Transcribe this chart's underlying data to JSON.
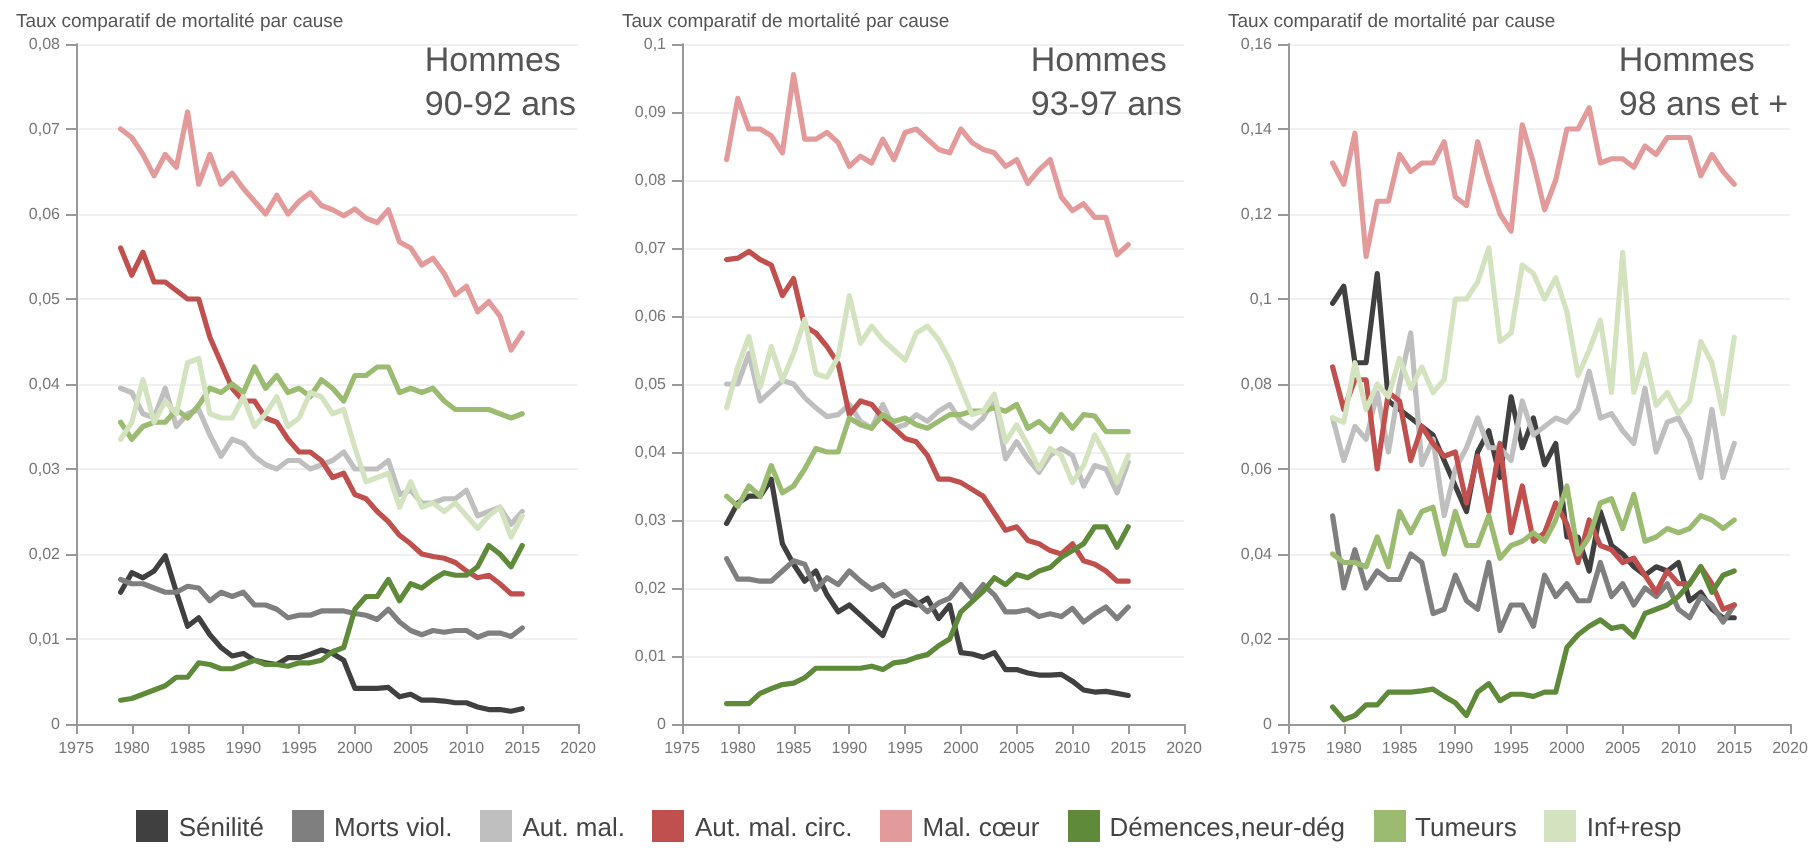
{
  "chart_data": [
    {
      "type": "line",
      "title": "Hommes\n90-92 ans",
      "ylabel": "Taux comparatif de mortalité par cause",
      "xlim": [
        1975,
        2020
      ],
      "xticks": [
        1975,
        1980,
        1985,
        1990,
        1995,
        2000,
        2005,
        2010,
        2015,
        2020
      ],
      "ylim": [
        0,
        0.08
      ],
      "yticks": [
        {
          "value": 0,
          "label": "0"
        },
        {
          "value": 0.01,
          "label": "0,01"
        },
        {
          "value": 0.02,
          "label": "0,02"
        },
        {
          "value": 0.03,
          "label": "0,03"
        },
        {
          "value": 0.04,
          "label": "0,04"
        },
        {
          "value": 0.05,
          "label": "0,05"
        },
        {
          "value": 0.06,
          "label": "0,06"
        },
        {
          "value": 0.07,
          "label": "0,07"
        },
        {
          "value": 0.08,
          "label": "0,08"
        }
      ],
      "grid": "y",
      "legend": "bottom",
      "marker": "none",
      "line_style": "solid",
      "x": [
        1979,
        1980,
        1981,
        1982,
        1983,
        1984,
        1985,
        1986,
        1987,
        1988,
        1989,
        1990,
        1991,
        1992,
        1993,
        1994,
        1995,
        1996,
        1997,
        1998,
        1999,
        2000,
        2001,
        2002,
        2003,
        2004,
        2005,
        2006,
        2007,
        2008,
        2009,
        2010,
        2011,
        2012,
        2013,
        2014,
        2015
      ],
      "series": [
        {
          "name": "Sénilité",
          "color": "#404040",
          "values": [
            0.0155,
            0.0178,
            0.0172,
            0.018,
            0.0198,
            0.0155,
            0.0115,
            0.0125,
            0.0105,
            0.009,
            0.008,
            0.0083,
            0.0075,
            0.0072,
            0.007,
            0.0078,
            0.0078,
            0.0082,
            0.0087,
            0.0083,
            0.0075,
            0.0042,
            0.0042,
            0.0042,
            0.0043,
            0.0032,
            0.0035,
            0.0028,
            0.0028,
            0.0027,
            0.0025,
            0.0025,
            0.002,
            0.0017,
            0.0017,
            0.0015,
            0.0018
          ]
        },
        {
          "name": "Morts viol.",
          "color": "#7f7f7f",
          "values": [
            0.017,
            0.0165,
            0.0165,
            0.016,
            0.0155,
            0.0155,
            0.0162,
            0.016,
            0.0145,
            0.0155,
            0.015,
            0.0155,
            0.014,
            0.014,
            0.0135,
            0.0125,
            0.0128,
            0.0128,
            0.0133,
            0.0133,
            0.0133,
            0.013,
            0.0128,
            0.0123,
            0.0135,
            0.012,
            0.011,
            0.0105,
            0.011,
            0.0108,
            0.011,
            0.011,
            0.0102,
            0.0107,
            0.0107,
            0.0103,
            0.0113
          ]
        },
        {
          "name": "Aut. mal.",
          "color": "#bfbfbf",
          "values": [
            0.0395,
            0.039,
            0.0365,
            0.036,
            0.0395,
            0.035,
            0.0365,
            0.037,
            0.034,
            0.0315,
            0.0335,
            0.033,
            0.0315,
            0.0305,
            0.03,
            0.031,
            0.031,
            0.03,
            0.0305,
            0.031,
            0.032,
            0.03,
            0.03,
            0.03,
            0.031,
            0.027,
            0.0275,
            0.026,
            0.026,
            0.0265,
            0.0265,
            0.0275,
            0.0245,
            0.025,
            0.0255,
            0.0235,
            0.025
          ]
        },
        {
          "name": "Aut. mal. circ.",
          "color": "#c0504d",
          "values": [
            0.056,
            0.0528,
            0.0555,
            0.052,
            0.052,
            0.051,
            0.05,
            0.05,
            0.0455,
            0.0425,
            0.0395,
            0.038,
            0.038,
            0.036,
            0.0355,
            0.0335,
            0.032,
            0.032,
            0.031,
            0.029,
            0.0295,
            0.027,
            0.0265,
            0.025,
            0.0238,
            0.0222,
            0.0212,
            0.02,
            0.0197,
            0.0195,
            0.019,
            0.018,
            0.0172,
            0.0175,
            0.0165,
            0.0153,
            0.0153
          ]
        },
        {
          "name": "Mal. cœur",
          "color": "#e29a9a",
          "values": [
            0.07,
            0.069,
            0.067,
            0.0645,
            0.067,
            0.0655,
            0.072,
            0.0635,
            0.067,
            0.0635,
            0.0648,
            0.063,
            0.0615,
            0.06,
            0.0622,
            0.06,
            0.0615,
            0.0625,
            0.061,
            0.0605,
            0.0598,
            0.0606,
            0.0595,
            0.059,
            0.0605,
            0.0567,
            0.056,
            0.054,
            0.0548,
            0.053,
            0.0505,
            0.0515,
            0.0485,
            0.0497,
            0.048,
            0.044,
            0.046
          ]
        },
        {
          "name": "Démences,neur-dég",
          "color": "#5e8a3a",
          "values": [
            0.0028,
            0.003,
            0.0035,
            0.004,
            0.0045,
            0.0055,
            0.0055,
            0.0072,
            0.007,
            0.0065,
            0.0065,
            0.007,
            0.0075,
            0.007,
            0.007,
            0.0068,
            0.0072,
            0.0072,
            0.0075,
            0.0085,
            0.009,
            0.0135,
            0.015,
            0.015,
            0.017,
            0.0145,
            0.0165,
            0.016,
            0.017,
            0.0178,
            0.0175,
            0.0175,
            0.0185,
            0.021,
            0.02,
            0.0185,
            0.021
          ]
        },
        {
          "name": "Tumeurs",
          "color": "#9bbb70",
          "values": [
            0.0355,
            0.0335,
            0.035,
            0.0355,
            0.0355,
            0.037,
            0.036,
            0.0375,
            0.0395,
            0.039,
            0.04,
            0.039,
            0.042,
            0.0395,
            0.041,
            0.039,
            0.0395,
            0.0385,
            0.0405,
            0.0395,
            0.038,
            0.041,
            0.041,
            0.042,
            0.042,
            0.039,
            0.0395,
            0.039,
            0.0395,
            0.038,
            0.037,
            0.037,
            0.037,
            0.037,
            0.0365,
            0.036,
            0.0365
          ]
        },
        {
          "name": "Inf+resp",
          "color": "#d4e3bf",
          "values": [
            0.0335,
            0.0355,
            0.0405,
            0.0355,
            0.038,
            0.0365,
            0.0425,
            0.043,
            0.0365,
            0.036,
            0.036,
            0.0385,
            0.035,
            0.0365,
            0.0385,
            0.035,
            0.036,
            0.039,
            0.0385,
            0.0365,
            0.037,
            0.0325,
            0.0285,
            0.029,
            0.0295,
            0.0255,
            0.0285,
            0.0255,
            0.026,
            0.025,
            0.026,
            0.0245,
            0.023,
            0.0245,
            0.0255,
            0.022,
            0.0245
          ]
        }
      ]
    },
    {
      "type": "line",
      "title": "Hommes\n93-97 ans",
      "ylabel": "Taux comparatif de mortalité par cause",
      "xlim": [
        1975,
        2020
      ],
      "xticks": [
        1975,
        1980,
        1985,
        1990,
        1995,
        2000,
        2005,
        2010,
        2015,
        2020
      ],
      "ylim": [
        0,
        0.1
      ],
      "yticks": [
        {
          "value": 0,
          "label": "0"
        },
        {
          "value": 0.01,
          "label": "0,01"
        },
        {
          "value": 0.02,
          "label": "0,02"
        },
        {
          "value": 0.03,
          "label": "0,03"
        },
        {
          "value": 0.04,
          "label": "0,04"
        },
        {
          "value": 0.05,
          "label": "0,05"
        },
        {
          "value": 0.06,
          "label": "0,06"
        },
        {
          "value": 0.07,
          "label": "0,07"
        },
        {
          "value": 0.08,
          "label": "0,08"
        },
        {
          "value": 0.09,
          "label": "0,09"
        },
        {
          "value": 0.1,
          "label": "0,1"
        }
      ],
      "grid": "y",
      "marker": "none",
      "line_style": "solid",
      "x": [
        1979,
        1980,
        1981,
        1982,
        1983,
        1984,
        1985,
        1986,
        1987,
        1988,
        1989,
        1990,
        1991,
        1992,
        1993,
        1994,
        1995,
        1996,
        1997,
        1998,
        1999,
        2000,
        2001,
        2002,
        2003,
        2004,
        2005,
        2006,
        2007,
        2008,
        2009,
        2010,
        2011,
        2012,
        2013,
        2014,
        2015
      ],
      "series": [
        {
          "color": "#404040",
          "values": [
            0.0295,
            0.0325,
            0.0335,
            0.0335,
            0.036,
            0.0265,
            0.0235,
            0.021,
            0.0225,
            0.019,
            0.0165,
            0.0175,
            0.016,
            0.0145,
            0.013,
            0.017,
            0.018,
            0.0175,
            0.0185,
            0.0155,
            0.0175,
            0.0105,
            0.0103,
            0.0098,
            0.0105,
            0.008,
            0.008,
            0.0075,
            0.0072,
            0.0072,
            0.0073,
            0.0063,
            0.005,
            0.0047,
            0.0048,
            0.0045,
            0.0042
          ]
        },
        {
          "color": "#7f7f7f",
          "values": [
            0.0243,
            0.0213,
            0.0213,
            0.021,
            0.021,
            0.0225,
            0.024,
            0.0235,
            0.0198,
            0.0215,
            0.0205,
            0.0225,
            0.021,
            0.0198,
            0.0205,
            0.0188,
            0.0195,
            0.018,
            0.0165,
            0.0178,
            0.0185,
            0.0205,
            0.0185,
            0.0205,
            0.019,
            0.0165,
            0.0165,
            0.0168,
            0.0158,
            0.0162,
            0.0158,
            0.017,
            0.015,
            0.0162,
            0.0172,
            0.0155,
            0.0172
          ]
        },
        {
          "color": "#bfbfbf",
          "values": [
            0.05,
            0.05,
            0.0545,
            0.0475,
            0.049,
            0.0505,
            0.05,
            0.048,
            0.0465,
            0.0452,
            0.0455,
            0.047,
            0.0445,
            0.0435,
            0.047,
            0.0435,
            0.044,
            0.0455,
            0.0445,
            0.046,
            0.047,
            0.0445,
            0.0435,
            0.045,
            0.048,
            0.039,
            0.0415,
            0.039,
            0.037,
            0.0395,
            0.0405,
            0.0395,
            0.035,
            0.038,
            0.0375,
            0.034,
            0.0385
          ]
        },
        {
          "color": "#c0504d",
          "values": [
            0.0683,
            0.0685,
            0.0695,
            0.0683,
            0.0675,
            0.063,
            0.0655,
            0.0585,
            0.0575,
            0.0555,
            0.053,
            0.0455,
            0.0475,
            0.047,
            0.045,
            0.0435,
            0.042,
            0.0415,
            0.0395,
            0.036,
            0.036,
            0.0355,
            0.0345,
            0.0335,
            0.031,
            0.0285,
            0.029,
            0.027,
            0.0265,
            0.0255,
            0.025,
            0.0265,
            0.024,
            0.0235,
            0.0225,
            0.021,
            0.021
          ]
        },
        {
          "color": "#e29a9a",
          "values": [
            0.083,
            0.092,
            0.0875,
            0.0875,
            0.0865,
            0.084,
            0.0955,
            0.086,
            0.086,
            0.087,
            0.0855,
            0.082,
            0.0835,
            0.0825,
            0.086,
            0.083,
            0.087,
            0.0875,
            0.086,
            0.0845,
            0.084,
            0.0875,
            0.0855,
            0.0845,
            0.084,
            0.082,
            0.083,
            0.0795,
            0.0815,
            0.083,
            0.0775,
            0.0755,
            0.0765,
            0.0745,
            0.0745,
            0.069,
            0.0705
          ]
        },
        {
          "color": "#5e8a3a",
          "values": [
            0.003,
            0.003,
            0.003,
            0.0045,
            0.0052,
            0.0058,
            0.006,
            0.0068,
            0.0082,
            0.0082,
            0.0082,
            0.0082,
            0.0082,
            0.0085,
            0.008,
            0.009,
            0.0092,
            0.0098,
            0.0102,
            0.0115,
            0.0125,
            0.0165,
            0.018,
            0.0195,
            0.0215,
            0.0205,
            0.022,
            0.0215,
            0.0225,
            0.023,
            0.0245,
            0.0255,
            0.0265,
            0.029,
            0.029,
            0.026,
            0.029
          ]
        },
        {
          "color": "#9bbb70",
          "values": [
            0.0335,
            0.032,
            0.035,
            0.0335,
            0.038,
            0.034,
            0.035,
            0.0375,
            0.0405,
            0.04,
            0.04,
            0.045,
            0.044,
            0.0435,
            0.0455,
            0.0445,
            0.045,
            0.044,
            0.0435,
            0.0445,
            0.0455,
            0.0455,
            0.046,
            0.046,
            0.0465,
            0.046,
            0.047,
            0.0435,
            0.0445,
            0.043,
            0.0455,
            0.0435,
            0.0455,
            0.0453,
            0.043,
            0.043,
            0.043
          ]
        },
        {
          "color": "#d4e3bf",
          "values": [
            0.0465,
            0.0525,
            0.057,
            0.0495,
            0.0555,
            0.0505,
            0.0545,
            0.0595,
            0.0515,
            0.051,
            0.054,
            0.063,
            0.056,
            0.0585,
            0.0565,
            0.055,
            0.0535,
            0.0575,
            0.0585,
            0.0565,
            0.0535,
            0.0495,
            0.0455,
            0.046,
            0.0485,
            0.0415,
            0.044,
            0.041,
            0.0375,
            0.0405,
            0.0395,
            0.0355,
            0.038,
            0.0425,
            0.0395,
            0.0355,
            0.0395
          ]
        }
      ]
    },
    {
      "type": "line",
      "title": "Hommes\n98 ans et +",
      "ylabel": "Taux comparatif de mortalité par cause",
      "xlim": [
        1975,
        2020
      ],
      "xticks": [
        1975,
        1980,
        1985,
        1990,
        1995,
        2000,
        2005,
        2010,
        2015,
        2020
      ],
      "ylim": [
        0,
        0.16
      ],
      "yticks": [
        {
          "value": 0,
          "label": "0"
        },
        {
          "value": 0.02,
          "label": "0,02"
        },
        {
          "value": 0.04,
          "label": "0,04"
        },
        {
          "value": 0.06,
          "label": "0,06"
        },
        {
          "value": 0.08,
          "label": "0,08"
        },
        {
          "value": 0.1,
          "label": "0,1"
        },
        {
          "value": 0.12,
          "label": "0,12"
        },
        {
          "value": 0.14,
          "label": "0,14"
        },
        {
          "value": 0.16,
          "label": "0,16"
        }
      ],
      "grid": "y",
      "marker": "none",
      "line_style": "solid",
      "x": [
        1979,
        1980,
        1981,
        1982,
        1983,
        1984,
        1985,
        1986,
        1987,
        1988,
        1989,
        1990,
        1991,
        1992,
        1993,
        1994,
        1995,
        1996,
        1997,
        1998,
        1999,
        2000,
        2001,
        2002,
        2003,
        2004,
        2005,
        2006,
        2007,
        2008,
        2009,
        2010,
        2011,
        2012,
        2013,
        2014,
        2015
      ],
      "series": [
        {
          "color": "#404040",
          "values": [
            0.099,
            0.103,
            0.085,
            0.085,
            0.106,
            0.076,
            0.074,
            0.072,
            0.07,
            0.068,
            0.062,
            0.056,
            0.05,
            0.064,
            0.069,
            0.058,
            0.077,
            0.065,
            0.072,
            0.061,
            0.066,
            0.044,
            0.044,
            0.036,
            0.05,
            0.042,
            0.04,
            0.037,
            0.035,
            0.037,
            0.036,
            0.038,
            0.029,
            0.031,
            0.027,
            0.025,
            0.025
          ]
        },
        {
          "color": "#7f7f7f",
          "values": [
            0.049,
            0.032,
            0.041,
            0.032,
            0.036,
            0.034,
            0.034,
            0.04,
            0.038,
            0.026,
            0.027,
            0.035,
            0.029,
            0.027,
            0.038,
            0.022,
            0.028,
            0.028,
            0.023,
            0.035,
            0.03,
            0.033,
            0.029,
            0.029,
            0.038,
            0.03,
            0.033,
            0.028,
            0.032,
            0.03,
            0.033,
            0.027,
            0.025,
            0.03,
            0.028,
            0.024,
            0.028
          ]
        },
        {
          "color": "#bfbfbf",
          "values": [
            0.072,
            0.062,
            0.07,
            0.067,
            0.078,
            0.064,
            0.08,
            0.092,
            0.061,
            0.067,
            0.049,
            0.06,
            0.065,
            0.072,
            0.065,
            0.065,
            0.062,
            0.076,
            0.068,
            0.07,
            0.072,
            0.071,
            0.074,
            0.083,
            0.072,
            0.073,
            0.069,
            0.066,
            0.079,
            0.064,
            0.071,
            0.072,
            0.067,
            0.058,
            0.074,
            0.058,
            0.066
          ]
        },
        {
          "color": "#c0504d",
          "values": [
            0.084,
            0.074,
            0.081,
            0.081,
            0.06,
            0.078,
            0.076,
            0.062,
            0.07,
            0.066,
            0.063,
            0.064,
            0.052,
            0.063,
            0.05,
            0.066,
            0.045,
            0.056,
            0.043,
            0.045,
            0.052,
            0.047,
            0.038,
            0.048,
            0.042,
            0.041,
            0.038,
            0.039,
            0.035,
            0.031,
            0.036,
            0.033,
            0.033,
            0.037,
            0.033,
            0.027,
            0.028
          ]
        },
        {
          "color": "#e29a9a",
          "values": [
            0.132,
            0.127,
            0.139,
            0.11,
            0.123,
            0.123,
            0.134,
            0.13,
            0.132,
            0.132,
            0.137,
            0.124,
            0.122,
            0.137,
            0.128,
            0.12,
            0.116,
            0.141,
            0.132,
            0.121,
            0.128,
            0.14,
            0.14,
            0.145,
            0.132,
            0.133,
            0.133,
            0.131,
            0.136,
            0.134,
            0.138,
            0.138,
            0.138,
            0.129,
            0.134,
            0.13,
            0.127
          ]
        },
        {
          "color": "#5e8a3a",
          "values": [
            0.004,
            0.001,
            0.002,
            0.0045,
            0.0045,
            0.0075,
            0.0075,
            0.0075,
            0.0078,
            0.0082,
            0.0065,
            0.005,
            0.002,
            0.0075,
            0.0095,
            0.0055,
            0.007,
            0.007,
            0.0065,
            0.0075,
            0.0075,
            0.018,
            0.021,
            0.023,
            0.0245,
            0.0225,
            0.023,
            0.0205,
            0.026,
            0.027,
            0.028,
            0.03,
            0.033,
            0.037,
            0.031,
            0.035,
            0.036
          ]
        },
        {
          "color": "#9bbb70",
          "values": [
            0.04,
            0.038,
            0.038,
            0.037,
            0.044,
            0.037,
            0.05,
            0.045,
            0.05,
            0.051,
            0.04,
            0.05,
            0.042,
            0.042,
            0.049,
            0.039,
            0.042,
            0.043,
            0.045,
            0.043,
            0.048,
            0.056,
            0.04,
            0.044,
            0.052,
            0.053,
            0.046,
            0.054,
            0.043,
            0.044,
            0.046,
            0.045,
            0.046,
            0.049,
            0.048,
            0.046,
            0.048
          ]
        },
        {
          "color": "#d4e3bf",
          "values": [
            0.072,
            0.071,
            0.085,
            0.074,
            0.08,
            0.077,
            0.086,
            0.079,
            0.084,
            0.078,
            0.081,
            0.1,
            0.1,
            0.104,
            0.112,
            0.09,
            0.092,
            0.108,
            0.106,
            0.1,
            0.105,
            0.097,
            0.082,
            0.088,
            0.095,
            0.078,
            0.111,
            0.078,
            0.087,
            0.075,
            0.078,
            0.073,
            0.076,
            0.09,
            0.085,
            0.073,
            0.091
          ]
        }
      ]
    }
  ]
}
